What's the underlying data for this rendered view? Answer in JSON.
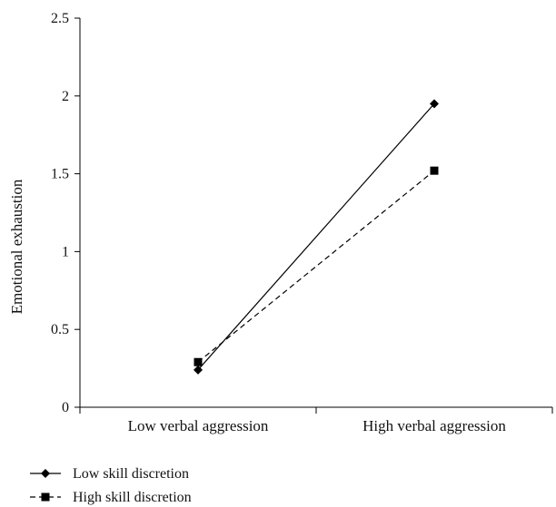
{
  "chart_data": {
    "type": "line",
    "title": "",
    "xlabel": "",
    "ylabel": "Emotional exhaustion",
    "categories": [
      "Low verbal aggression",
      "High verbal aggression"
    ],
    "ylim": [
      0,
      2.5
    ],
    "yticks": [
      0,
      0.5,
      1,
      1.5,
      2,
      2.5
    ],
    "ytick_labels": [
      "0",
      "0.5",
      "1",
      "1.5",
      "2",
      "2.5"
    ],
    "grid": false,
    "legend_position": "bottom-left",
    "series": [
      {
        "name": "Low skill discretion",
        "values": [
          0.24,
          1.95
        ],
        "marker": "diamond",
        "line_style": "solid",
        "color": "#000000"
      },
      {
        "name": "High skill discretion",
        "values": [
          0.29,
          1.52
        ],
        "marker": "square",
        "line_style": "dashed",
        "color": "#000000"
      }
    ]
  }
}
